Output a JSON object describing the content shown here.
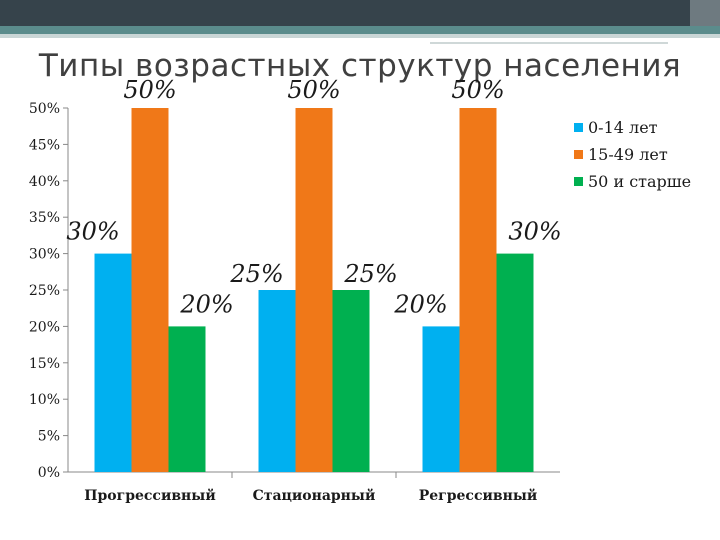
{
  "slide": {
    "title": "Типы возрастных структур населения"
  },
  "colors": {
    "header_dark": "#36434b",
    "header_stripe": "#5b8c8c"
  },
  "chart_data": {
    "type": "bar",
    "title": "",
    "xlabel": "",
    "ylabel": "",
    "ylim": [
      0,
      50
    ],
    "yticks": [
      "0%",
      "5%",
      "10%",
      "15%",
      "20%",
      "25%",
      "30%",
      "35%",
      "40%",
      "45%",
      "50%"
    ],
    "categories": [
      "Прогрессивный",
      "Стационарный",
      "Регрессивный"
    ],
    "series": [
      {
        "name": "0-14 лет",
        "color": "#00b0f0",
        "values": [
          30,
          25,
          20
        ],
        "labels": [
          "30%",
          "25%",
          "20%"
        ]
      },
      {
        "name": "15-49 лет",
        "color": "#f07818",
        "values": [
          50,
          50,
          50
        ],
        "labels": [
          "50%",
          "50%",
          "50%"
        ]
      },
      {
        "name": "50 и старше",
        "color": "#00b050",
        "values": [
          20,
          25,
          30
        ],
        "labels": [
          "20%",
          "25%",
          "30%"
        ]
      }
    ],
    "grid": false,
    "legend": "right"
  }
}
